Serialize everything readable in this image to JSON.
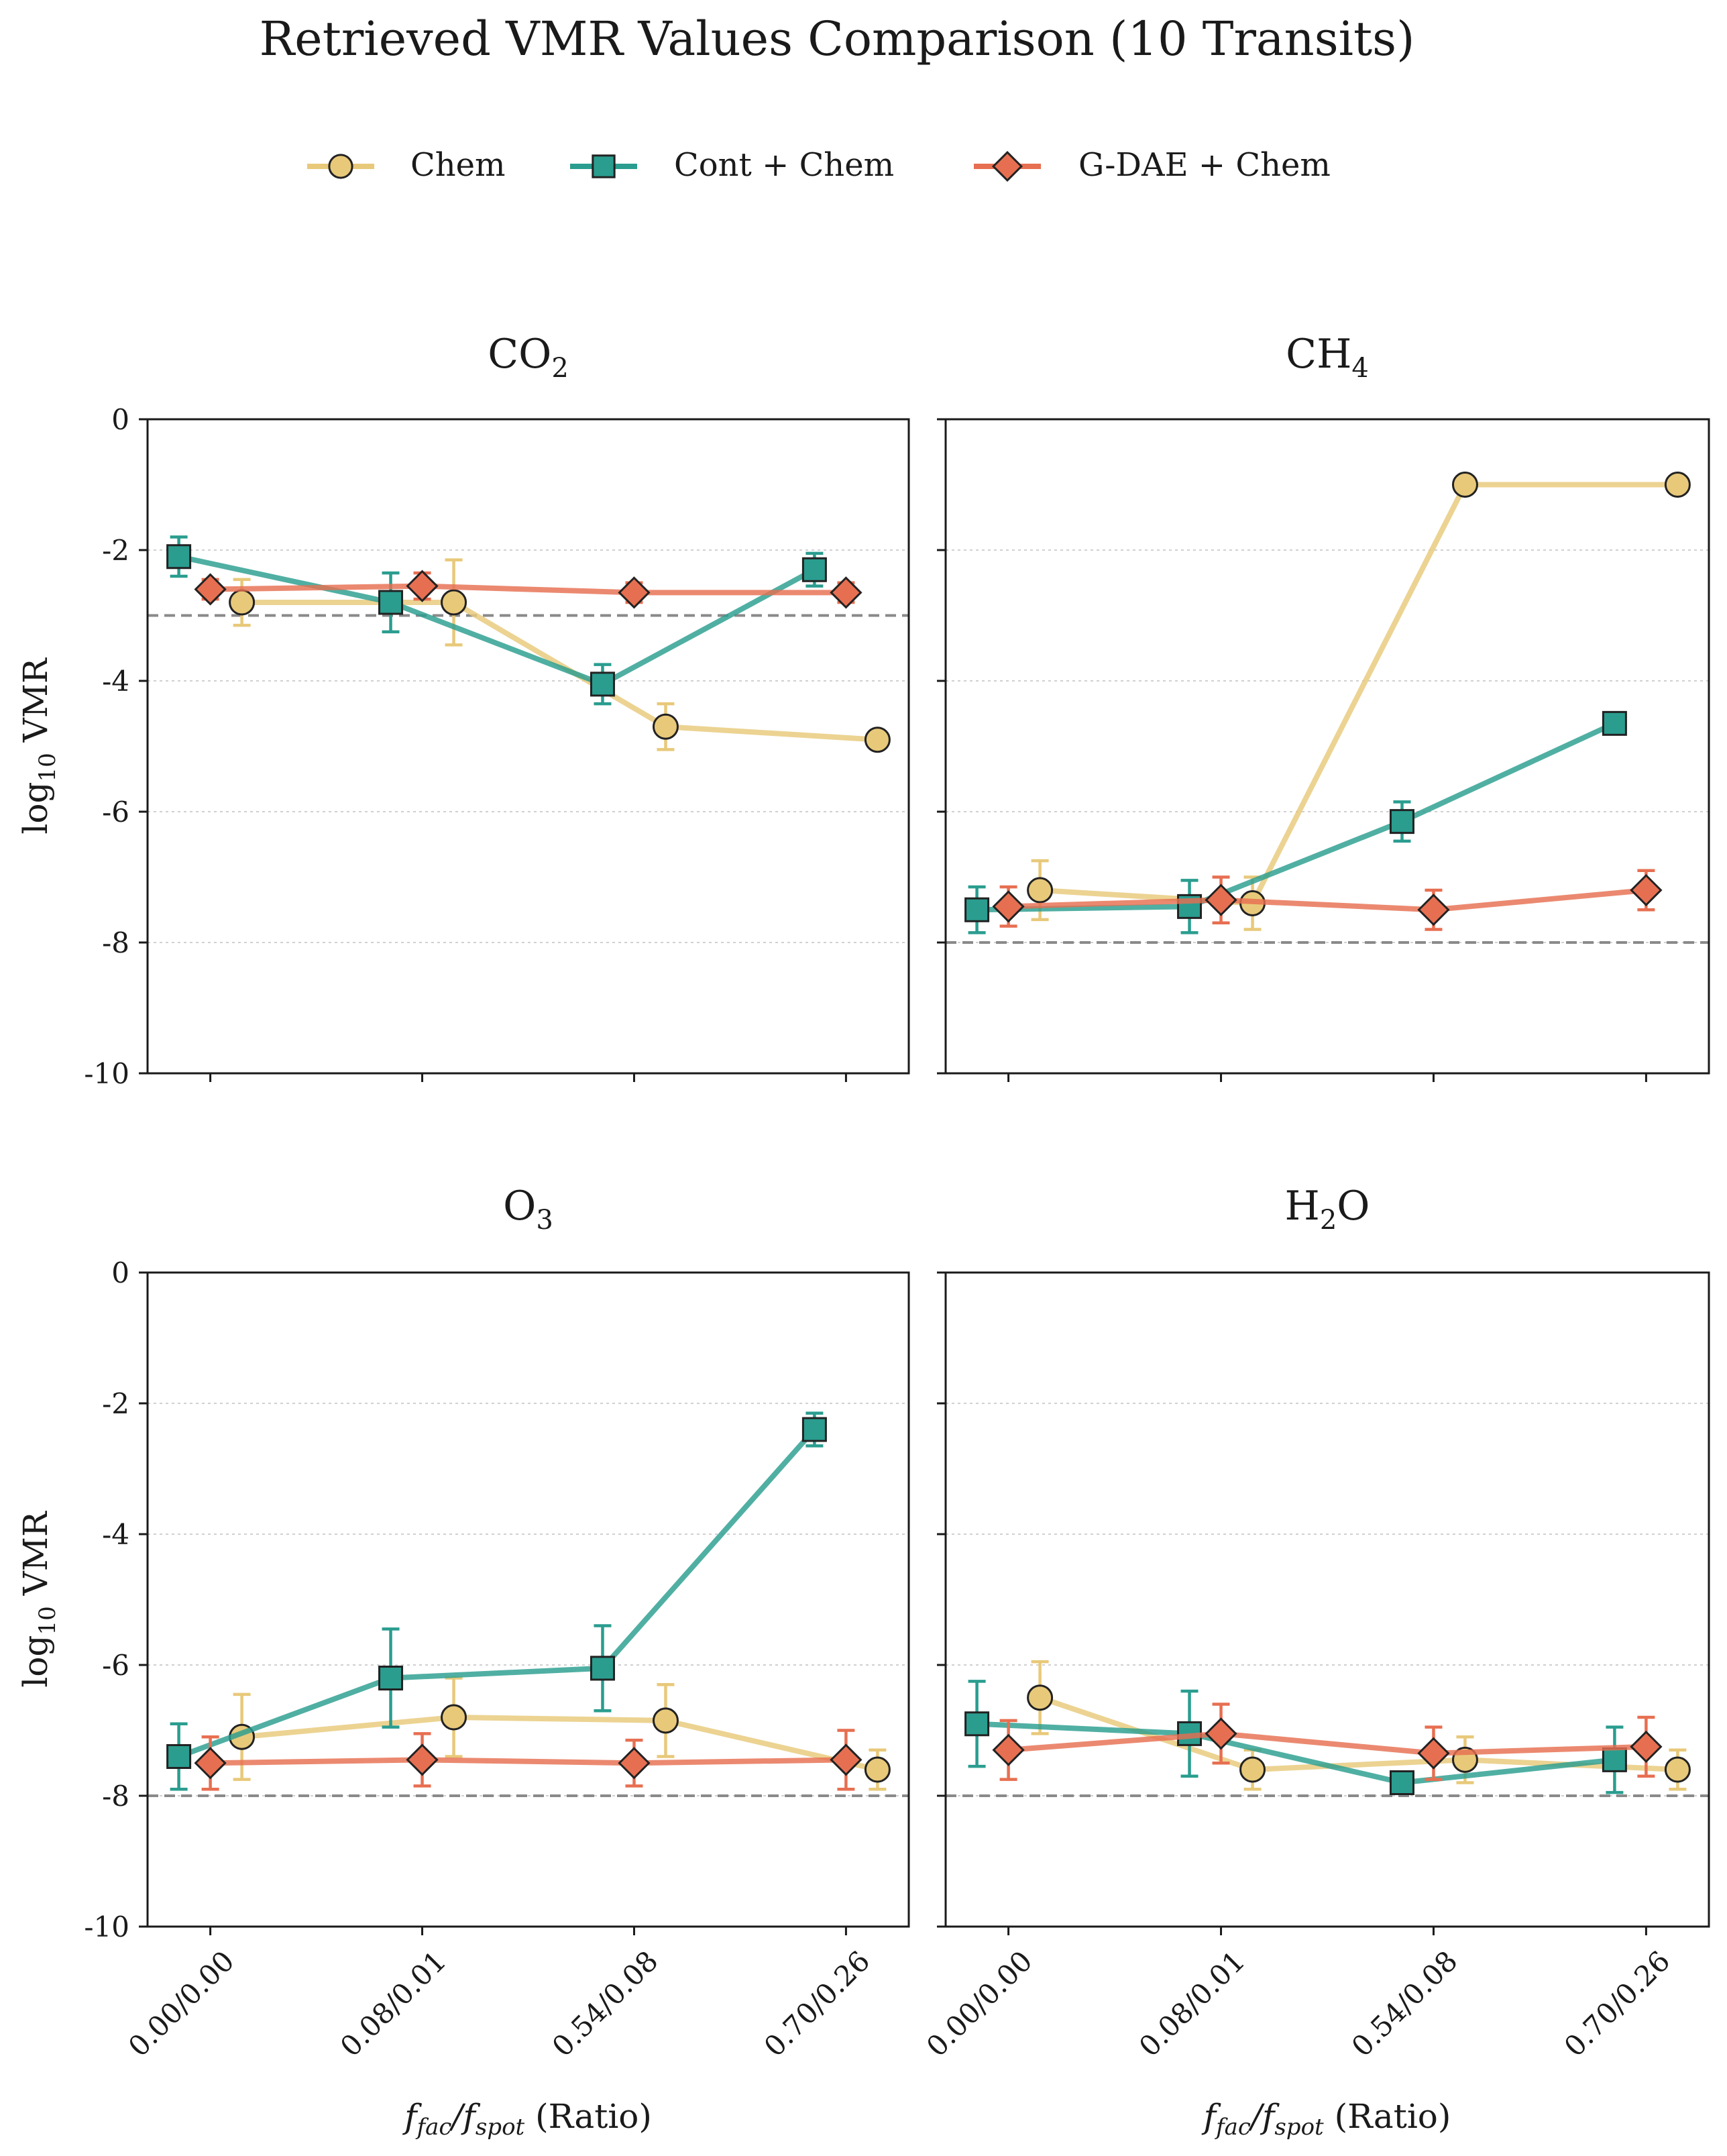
{
  "figure": {
    "title": "Retrieved VMR Values Comparison (10 Transits)",
    "x_axis_label_prefix_italic": "f",
    "x_axis_label_fac_sub": "fac",
    "x_axis_label_slash": "/",
    "x_axis_label_spot_sub": "spot",
    "x_axis_label_suffix": " (Ratio)",
    "y_axis_label_log": "log",
    "y_axis_label_sub": "10",
    "y_axis_label_suffix": " VMR"
  },
  "legend": [
    {
      "name": "Chem",
      "color": "#E8C97A",
      "marker": "circle-icon"
    },
    {
      "name": "Cont + Chem",
      "color": "#2A9D8F",
      "marker": "square-icon"
    },
    {
      "name": "G-DAE + Chem",
      "color": "#E76F51",
      "marker": "diamond-icon"
    }
  ],
  "chart_data": [
    {
      "type": "line",
      "title_main": "CO",
      "title_sub": "2",
      "categories": [
        "0.00/0.00",
        "0.08/0.01",
        "0.54/0.08",
        "0.70/0.26"
      ],
      "ylim": [
        -10,
        0
      ],
      "yticks": [
        0,
        -2,
        -4,
        -6,
        -8,
        -10
      ],
      "reference_line": -3,
      "series": [
        {
          "name": "Chem",
          "values": [
            -2.8,
            -2.8,
            -4.7,
            -4.9
          ],
          "err": [
            0.35,
            0.65,
            0.35,
            0
          ]
        },
        {
          "name": "Cont + Chem",
          "values": [
            -2.1,
            -2.8,
            -4.05,
            -2.3
          ],
          "err": [
            0.3,
            0.45,
            0.3,
            0.25
          ]
        },
        {
          "name": "G-DAE + Chem",
          "values": [
            -2.6,
            -2.55,
            -2.65,
            -2.65
          ],
          "err": [
            0.15,
            0.2,
            0.15,
            0.15
          ]
        }
      ]
    },
    {
      "type": "line",
      "title_main": "CH",
      "title_sub": "4",
      "categories": [
        "0.00/0.00",
        "0.08/0.01",
        "0.54/0.08",
        "0.70/0.26"
      ],
      "ylim": [
        -10,
        0
      ],
      "yticks": [
        0,
        -2,
        -4,
        -6,
        -8,
        -10
      ],
      "reference_line": -8,
      "series": [
        {
          "name": "Chem",
          "values": [
            -7.2,
            -7.4,
            -1.0,
            -1.0
          ],
          "err": [
            0.45,
            0.4,
            0,
            0
          ]
        },
        {
          "name": "Cont + Chem",
          "values": [
            -7.5,
            -7.45,
            -6.15,
            -4.65
          ],
          "err": [
            0.35,
            0.4,
            0.3,
            0
          ]
        },
        {
          "name": "G-DAE + Chem",
          "values": [
            -7.45,
            -7.35,
            -7.5,
            -7.2
          ],
          "err": [
            0.3,
            0.35,
            0.3,
            0.3
          ]
        }
      ]
    },
    {
      "type": "line",
      "title_main": "O",
      "title_sub": "3",
      "categories": [
        "0.00/0.00",
        "0.08/0.01",
        "0.54/0.08",
        "0.70/0.26"
      ],
      "ylim": [
        -10,
        0
      ],
      "yticks": [
        0,
        -2,
        -4,
        -6,
        -8,
        -10
      ],
      "reference_line": -8,
      "series": [
        {
          "name": "Chem",
          "values": [
            -7.1,
            -6.8,
            -6.85,
            -7.6
          ],
          "err": [
            0.65,
            0.6,
            0.55,
            0.3
          ]
        },
        {
          "name": "Cont + Chem",
          "values": [
            -7.4,
            -6.2,
            -6.05,
            -2.4
          ],
          "err": [
            0.5,
            0.75,
            0.65,
            0.25
          ]
        },
        {
          "name": "G-DAE + Chem",
          "values": [
            -7.5,
            -7.45,
            -7.5,
            -7.45
          ],
          "err": [
            0.4,
            0.4,
            0.35,
            0.45
          ]
        }
      ]
    },
    {
      "type": "line",
      "title_main": "H",
      "title_sub": "2",
      "title_suffix": "O",
      "categories": [
        "0.00/0.00",
        "0.08/0.01",
        "0.54/0.08",
        "0.70/0.26"
      ],
      "ylim": [
        -10,
        0
      ],
      "yticks": [
        0,
        -2,
        -4,
        -6,
        -8,
        -10
      ],
      "reference_line": -8,
      "series": [
        {
          "name": "Chem",
          "values": [
            -6.5,
            -7.6,
            -7.45,
            -7.6
          ],
          "err": [
            0.55,
            0.3,
            0.35,
            0.3
          ]
        },
        {
          "name": "Cont + Chem",
          "values": [
            -6.9,
            -7.05,
            -7.8,
            -7.45
          ],
          "err": [
            0.65,
            0.65,
            0,
            0.5
          ]
        },
        {
          "name": "G-DAE + Chem",
          "values": [
            -7.3,
            -7.05,
            -7.35,
            -7.25
          ],
          "err": [
            0.45,
            0.45,
            0.4,
            0.45
          ]
        }
      ]
    }
  ]
}
